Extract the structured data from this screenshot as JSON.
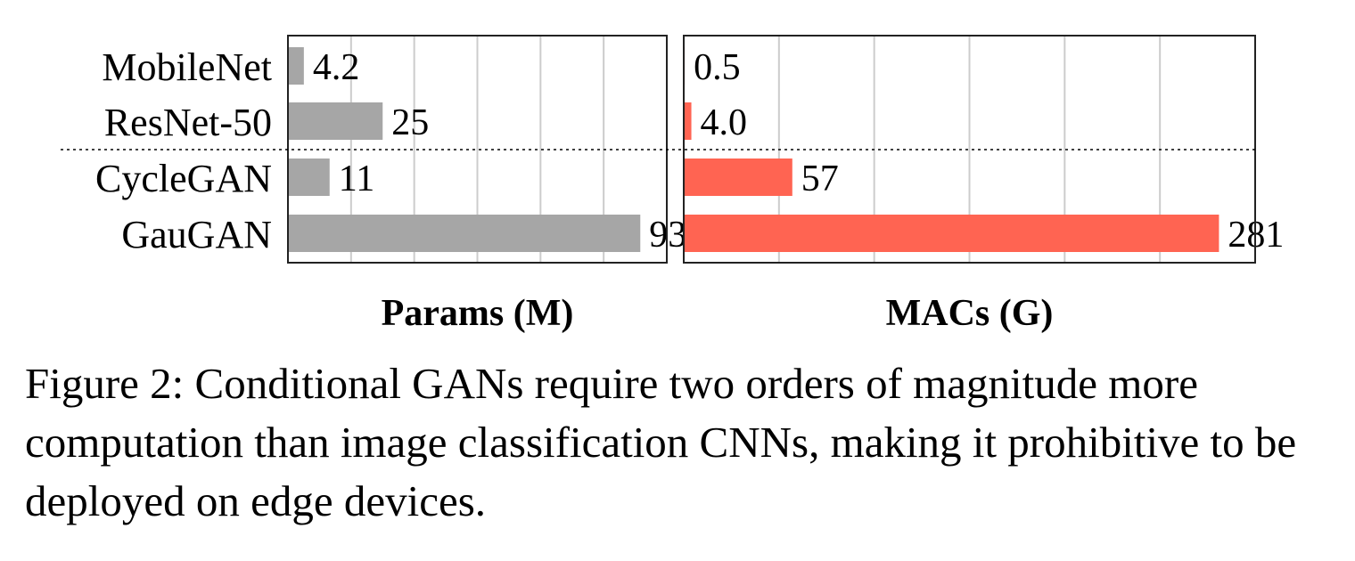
{
  "chart_data": [
    {
      "type": "bar",
      "orientation": "horizontal",
      "title": "",
      "xlabel": "Params (M)",
      "ylabel": "",
      "categories": [
        "MobileNet",
        "ResNet-50",
        "CycleGAN",
        "GauGAN"
      ],
      "values": [
        4.2,
        25,
        11,
        93
      ],
      "value_labels": [
        "4.2",
        "25",
        "11",
        "93"
      ],
      "xlim": [
        0,
        100
      ],
      "grid": true,
      "bar_color": "#a6a6a6",
      "group_separator": "dashed line between ResNet-50 and CycleGAN"
    },
    {
      "type": "bar",
      "orientation": "horizontal",
      "title": "",
      "xlabel": "MACs (G)",
      "ylabel": "",
      "categories": [
        "MobileNet",
        "ResNet-50",
        "CycleGAN",
        "GauGAN"
      ],
      "values": [
        0.5,
        4.0,
        57,
        281
      ],
      "value_labels": [
        "0.5",
        "4.0",
        "57",
        "281"
      ],
      "xlim": [
        0,
        300
      ],
      "grid": true,
      "bar_color": "#ff6452",
      "group_separator": "dashed line between ResNet-50 and CycleGAN"
    }
  ],
  "caption": "Figure 2: Conditional GANs require two orders of magnitude more computation than image classification CNNs, making it prohibitive to be deployed on edge devices."
}
